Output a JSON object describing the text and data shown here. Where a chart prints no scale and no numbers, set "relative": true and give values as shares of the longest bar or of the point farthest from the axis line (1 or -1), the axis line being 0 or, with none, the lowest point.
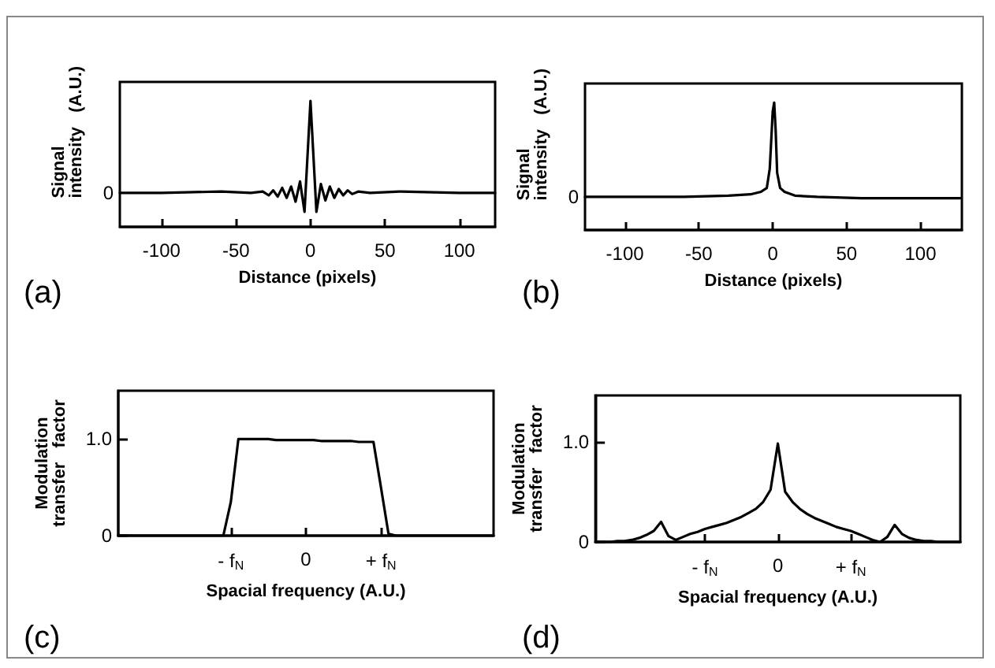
{
  "chart_data": [
    {
      "type": "line",
      "title": "(a)",
      "xlabel": "Distance (pixels)",
      "ylabel": "Signal\nintensity   (A.U.)",
      "relative": true,
      "annotations": [
        "0"
      ],
      "xlim": [
        -128,
        124
      ],
      "xticks": [
        -100,
        -50,
        0,
        50,
        100
      ],
      "x": [
        -128,
        -100,
        -60,
        -40,
        -32,
        -28,
        -25,
        -22,
        -19,
        -16,
        -13,
        -10,
        -7,
        -4,
        -2,
        0,
        2,
        4,
        7,
        10,
        13,
        16,
        19,
        22,
        25,
        28,
        32,
        40,
        60,
        100,
        124
      ],
      "series": [
        {
          "color": "#000000",
          "values": [
            0.27,
            0.27,
            0.28,
            0.27,
            0.28,
            0.25,
            0.29,
            0.24,
            0.31,
            0.23,
            0.32,
            0.2,
            0.36,
            0.12,
            0.56,
            1,
            0.56,
            0.12,
            0.34,
            0.21,
            0.32,
            0.23,
            0.3,
            0.25,
            0.29,
            0.26,
            0.28,
            0.27,
            0.28,
            0.27,
            0.27
          ]
        }
      ]
    },
    {
      "type": "line",
      "title": "(b)",
      "xlabel": "Distance (pixels)",
      "ylabel": "Signal\nintensity   (A.U.)",
      "relative": true,
      "annotations": [
        "0"
      ],
      "xlim": [
        -127,
        128
      ],
      "xticks": [
        -100,
        -50,
        0,
        50,
        100
      ],
      "x": [
        -127,
        -60,
        -30,
        -15,
        -8,
        -4,
        -2,
        0,
        1,
        2,
        3,
        5,
        8,
        15,
        30,
        60,
        127
      ],
      "series": [
        {
          "color": "#000000",
          "values": [
            0.26,
            0.26,
            0.27,
            0.28,
            0.3,
            0.33,
            0.48,
            0.93,
            1,
            0.78,
            0.45,
            0.33,
            0.3,
            0.27,
            0.26,
            0.25,
            0.25
          ]
        }
      ]
    },
    {
      "type": "line",
      "title": "(c)",
      "xlabel": "Spacial frequency (A.U.)",
      "ylabel": "Modulation\ntransfer   factor",
      "categories": [
        null,
        null,
        null,
        null,
        null,
        null,
        null,
        null,
        null,
        null,
        null,
        null,
        null,
        null,
        null,
        "- f$_{N}$",
        null,
        null,
        null,
        null,
        null,
        null,
        null,
        null,
        null,
        "0",
        null,
        null,
        null,
        null,
        null,
        null,
        null,
        null,
        null,
        "+ f$_{N}$",
        null,
        null,
        null,
        null,
        null,
        null,
        null,
        null,
        null,
        null,
        null,
        null,
        null,
        null,
        null
      ],
      "ylim": [
        0,
        1.5
      ],
      "yticks": [
        0,
        {
          "value": 1,
          "label": "1.0"
        }
      ],
      "series": [
        {
          "color": "#000000",
          "values": [
            0,
            0,
            0,
            0,
            0,
            0,
            0,
            0,
            0,
            0,
            0,
            0,
            0,
            0,
            0,
            0.35,
            1.0,
            1.0,
            1.0,
            1.0,
            1.0,
            0.99,
            0.99,
            0.99,
            0.99,
            0.99,
            0.99,
            0.98,
            0.98,
            0.98,
            0.98,
            0.98,
            0.97,
            0.97,
            0.97,
            0.5,
            0.02,
            0,
            0,
            0,
            0,
            0,
            0,
            0,
            0,
            0,
            0,
            0,
            0,
            0,
            0
          ]
        }
      ]
    },
    {
      "type": "line",
      "title": "(d)",
      "xlabel": "Spacial frequency (A.U.)",
      "ylabel": "Modulation\ntransfer   factor",
      "categories": [
        null,
        null,
        null,
        null,
        null,
        null,
        null,
        null,
        null,
        null,
        null,
        null,
        null,
        null,
        null,
        "- f$_{N}$",
        null,
        null,
        null,
        null,
        null,
        null,
        null,
        null,
        null,
        "0",
        null,
        null,
        null,
        null,
        null,
        null,
        null,
        null,
        null,
        "+ f$_{N}$",
        null,
        null,
        null,
        null,
        null,
        null,
        null,
        null,
        null,
        null,
        null,
        null,
        null,
        null,
        null
      ],
      "ylim": [
        0,
        1.46
      ],
      "yticks": [
        0,
        {
          "value": 1,
          "label": "1.0"
        }
      ],
      "series": [
        {
          "color": "#000000",
          "values": [
            0,
            0,
            0,
            0.01,
            0.01,
            0.02,
            0.04,
            0.07,
            0.11,
            0.2,
            0.06,
            0.02,
            0.05,
            0.08,
            0.1,
            0.13,
            0.15,
            0.17,
            0.19,
            0.22,
            0.25,
            0.29,
            0.33,
            0.4,
            0.52,
            0.98,
            0.5,
            0.4,
            0.33,
            0.28,
            0.24,
            0.21,
            0.18,
            0.15,
            0.13,
            0.11,
            0.08,
            0.05,
            0.02,
            0,
            0.05,
            0.17,
            0.08,
            0.04,
            0.02,
            0.01,
            0.01,
            0,
            0,
            0,
            0
          ]
        }
      ]
    }
  ]
}
